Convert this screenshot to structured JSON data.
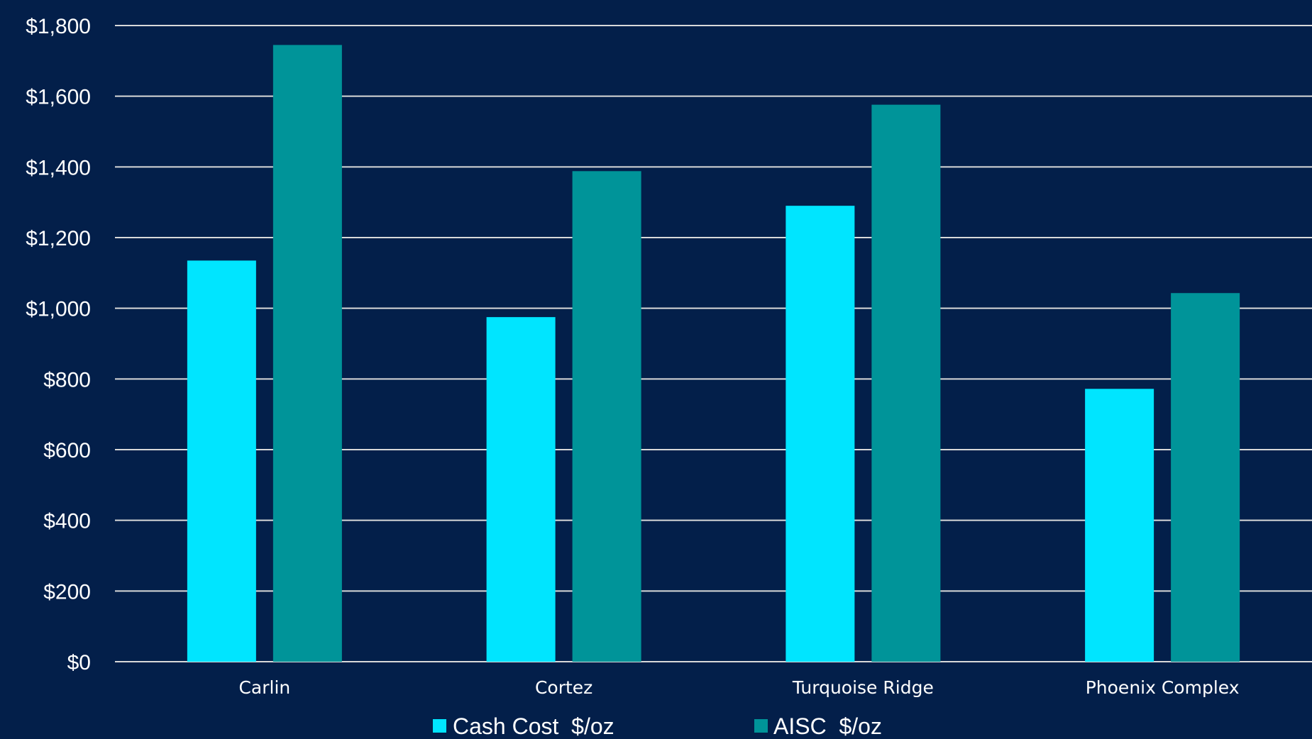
{
  "chart_data": {
    "type": "bar",
    "categories": [
      "Carlin",
      "Cortez",
      "Turquoise Ridge",
      "Phoenix Complex"
    ],
    "series": [
      {
        "name": "Cash Cost  $/oz",
        "color": "#00e5ff",
        "values": [
          1135,
          975,
          1290,
          772
        ]
      },
      {
        "name": "AISC  $/oz",
        "color": "#009499",
        "values": [
          1745,
          1388,
          1576,
          1043
        ]
      }
    ],
    "ylim": [
      0,
      1800
    ],
    "yticks": [
      0,
      200,
      400,
      600,
      800,
      1000,
      1200,
      1400,
      1600,
      1800
    ],
    "ytick_labels": [
      "$0",
      "$200",
      "$400",
      "$600",
      "$800",
      "$1,000",
      "$1,200",
      "$1,400",
      "$1,600",
      "$1,800"
    ],
    "grid": true,
    "legend_position": "bottom",
    "background_color": "#031f4a",
    "gridline_color": "#d9d9d9",
    "text_color": "#ffffff"
  }
}
